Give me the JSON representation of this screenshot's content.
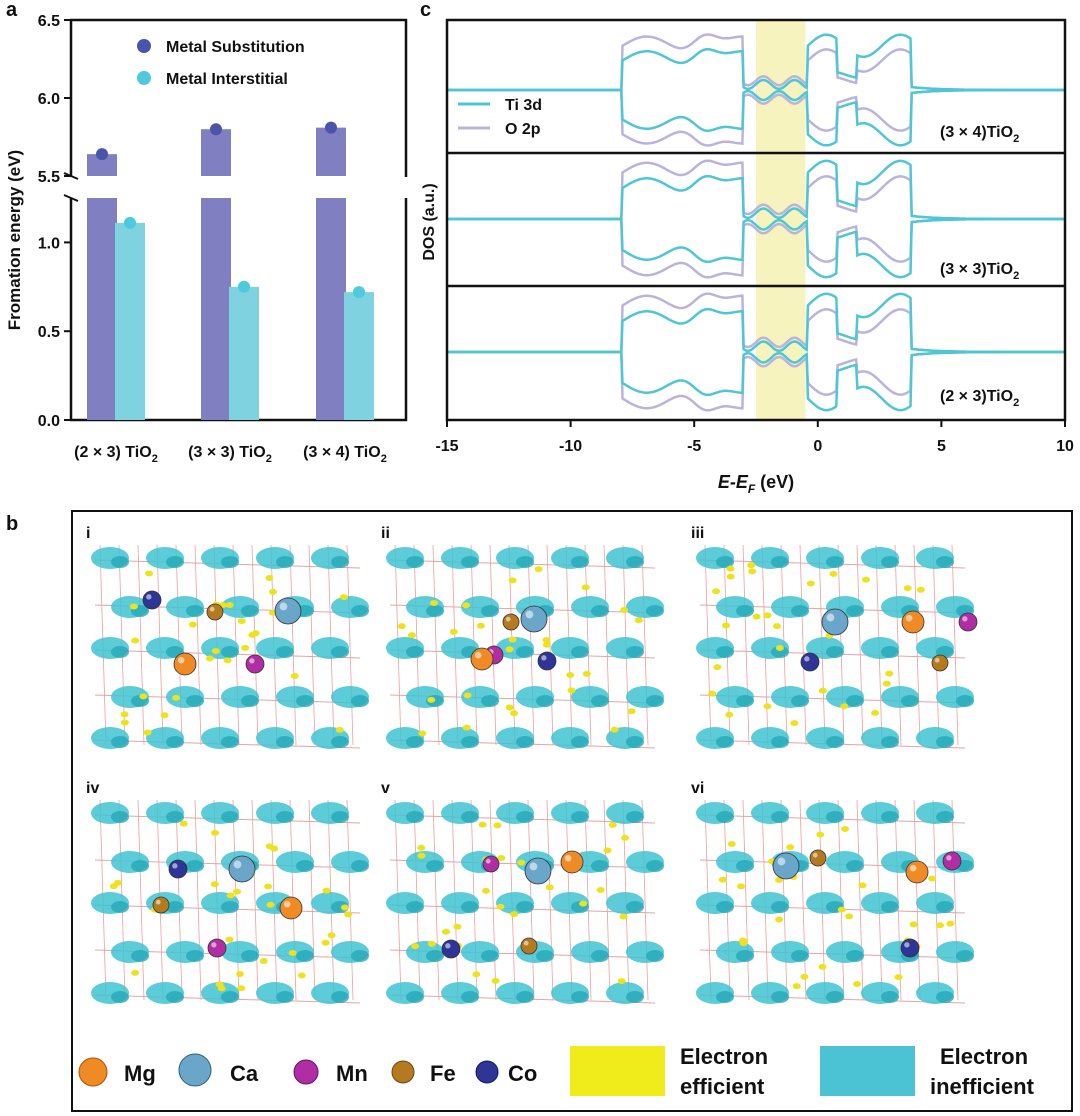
{
  "panel_labels": {
    "a": "a",
    "b": "b",
    "c": "c"
  },
  "colors": {
    "substitution": "#7f7fc2",
    "substitution_dot": "#4a55aa",
    "interstitial": "#7fd3e0",
    "interstitial_dot": "#4fc9dc",
    "ti3d": "#4ec6d6",
    "o2p": "#b9b4dc",
    "highlight": "#f7f3bf",
    "electron_efficient": "#f0eb1a",
    "electron_inefficient": "#4cc3d4",
    "mg": "#f08a24",
    "ca": "#6aa6c9",
    "mn": "#b02da3",
    "fe": "#b5791f",
    "co": "#2f3596"
  },
  "chart_data": [
    {
      "type": "bar",
      "panel": "a",
      "title": "",
      "xlabel": "",
      "ylabel": "Fromation energy (eV)",
      "categories": [
        "(2 × 3) TiO",
        "(3 × 3) TiO",
        "(3 × 4) TiO"
      ],
      "category_subscript": "2",
      "series": [
        {
          "name": "Metal Substitution",
          "values": [
            5.64,
            5.8,
            5.81
          ]
        },
        {
          "name": "Metal Interstitial",
          "values": [
            1.11,
            0.75,
            0.72
          ]
        }
      ],
      "y_lower_range": [
        0.0,
        1.25
      ],
      "y_upper_range": [
        5.5,
        6.5
      ],
      "y_ticks_lower": [
        "0.0",
        "0.5",
        "1.0"
      ],
      "y_ticks_upper": [
        "5.5",
        "6.0",
        "6.5"
      ],
      "axis_break": true,
      "legend_position": "top-right"
    },
    {
      "type": "line",
      "panel": "c",
      "xlabel_main": "E-E",
      "xlabel_sub": "F",
      "xlabel_unit": " (eV)",
      "ylabel": "DOS (a.u.)",
      "xlim": [
        -15,
        10
      ],
      "x_ticks": [
        "-15",
        "-10",
        "-5",
        "0",
        "5",
        "10"
      ],
      "highlight_x_range": [
        -2.5,
        -0.5
      ],
      "series": [
        {
          "name": "Ti 3d"
        },
        {
          "name": "O 2p"
        }
      ],
      "subpanels": [
        {
          "label_main": "(3 × 4)TiO",
          "label_sub": "2"
        },
        {
          "label_main": "(3 × 3)TiO",
          "label_sub": "2"
        },
        {
          "label_main": "(2 × 3)TiO",
          "label_sub": "2"
        }
      ],
      "legend_position": "top-left"
    }
  ],
  "structures": {
    "labels": [
      "i",
      "ii",
      "iii",
      "iv",
      "v",
      "vi"
    ]
  },
  "legend_b": {
    "atoms": [
      {
        "key": "mg",
        "label": "Mg"
      },
      {
        "key": "ca",
        "label": "Ca"
      },
      {
        "key": "mn",
        "label": "Mn"
      },
      {
        "key": "fe",
        "label": "Fe"
      },
      {
        "key": "co",
        "label": "Co"
      }
    ],
    "electron_efficient": [
      "Electron",
      "efficient"
    ],
    "electron_inefficient": [
      "Electron",
      "inefficient"
    ]
  }
}
